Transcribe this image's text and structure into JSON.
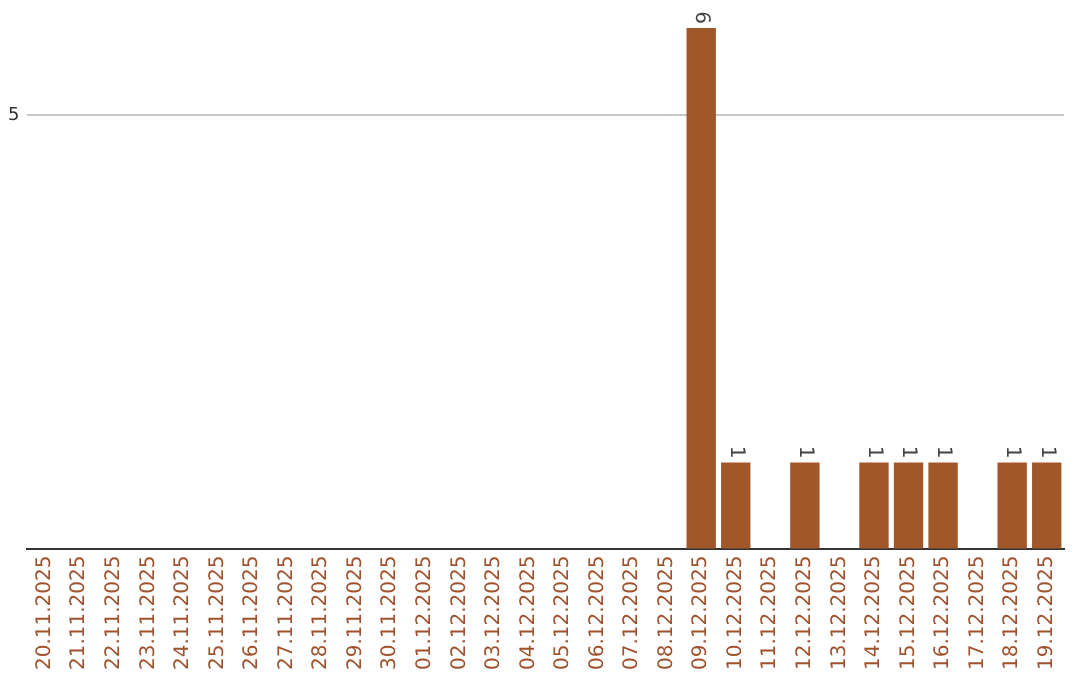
{
  "chart_data": {
    "type": "bar",
    "categories": [
      "20.11.2025",
      "21.11.2025",
      "22.11.2025",
      "23.11.2025",
      "24.11.2025",
      "25.11.2025",
      "26.11.2025",
      "27.11.2025",
      "28.11.2025",
      "29.11.2025",
      "30.11.2025",
      "01.12.2025",
      "02.12.2025",
      "03.12.2025",
      "04.12.2025",
      "05.12.2025",
      "06.12.2025",
      "07.12.2025",
      "08.12.2025",
      "09.12.2025",
      "10.12.2025",
      "11.12.2025",
      "12.12.2025",
      "13.12.2025",
      "14.12.2025",
      "15.12.2025",
      "16.12.2025",
      "17.12.2025",
      "18.12.2025",
      "19.12.2025"
    ],
    "values": [
      null,
      null,
      null,
      null,
      null,
      null,
      null,
      null,
      null,
      null,
      null,
      null,
      null,
      null,
      null,
      null,
      null,
      null,
      null,
      6,
      1,
      null,
      1,
      null,
      1,
      1,
      1,
      null,
      1,
      1
    ],
    "color": "#a0572a",
    "ylim": [
      0,
      6
    ],
    "yticks": [
      {
        "value": 0,
        "label": null
      },
      5
    ],
    "grid": "y",
    "data_labels": true,
    "legend": false
  }
}
